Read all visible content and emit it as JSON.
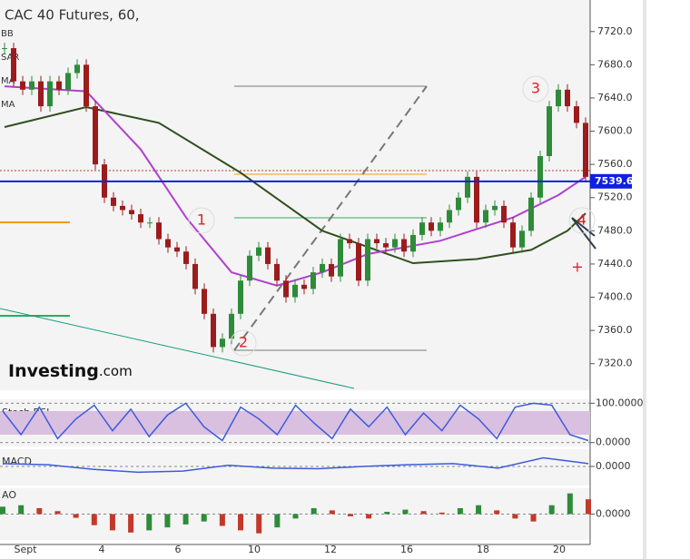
{
  "chart_data": {
    "type": "candlestick",
    "title": "CAC 40 Futures, 60,",
    "up_color": "#2e8b3a",
    "down_color": "#9b1c1c",
    "close": [
      7700,
      7660,
      7650,
      7660,
      7630,
      7660,
      7650,
      7670,
      7680,
      7630,
      7560,
      7520,
      7510,
      7505,
      7500,
      7490,
      7490,
      7470,
      7460,
      7455,
      7440,
      7410,
      7380,
      7340,
      7350,
      7380,
      7420,
      7450,
      7460,
      7440,
      7420,
      7400,
      7415,
      7410,
      7430,
      7440,
      7425,
      7470,
      7465,
      7420,
      7470,
      7465,
      7460,
      7470,
      7455,
      7475,
      7490,
      7480,
      7490,
      7505,
      7520,
      7545,
      7490,
      7505,
      7510,
      7490,
      7460,
      7480,
      7520,
      7570,
      7630,
      7650,
      7630,
      7610,
      7545
    ],
    "ylim": [
      7288,
      7758
    ],
    "yticks": [
      {
        "value": 7720,
        "label": "7720.0"
      },
      {
        "value": 7680,
        "label": "7680.0"
      },
      {
        "value": 7640,
        "label": "7640.0"
      },
      {
        "value": 7600,
        "label": "7600.0"
      },
      {
        "value": 7560,
        "label": "7560.0"
      },
      {
        "value": 7520,
        "label": "7520.0"
      },
      {
        "value": 7480,
        "label": "7480.0"
      },
      {
        "value": 7440,
        "label": "7440.0"
      },
      {
        "value": 7400,
        "label": "7400.0"
      },
      {
        "value": 7360,
        "label": "7360.0"
      },
      {
        "value": 7320,
        "label": "7320.0"
      }
    ],
    "last_price": 7539.6,
    "x_labels": [
      "Sept",
      "4",
      "6",
      "10",
      "12",
      "16",
      "18",
      "20"
    ],
    "legend": [
      "BB",
      "SAR",
      "MA",
      "MA"
    ],
    "overlays": [
      {
        "name": "MA",
        "color": "#2f4f1f",
        "x": [
          0,
          9,
          17,
          26,
          35,
          45,
          52,
          58,
          62,
          64
        ],
        "values": [
          7605,
          7629,
          7610,
          7550,
          7480,
          7441,
          7446,
          7457,
          7480,
          7501
        ]
      },
      {
        "name": "MA",
        "color": "#b040d0",
        "x": [
          0,
          9,
          15,
          20,
          25,
          30,
          35,
          40,
          48,
          56,
          61,
          64
        ],
        "values": [
          7654,
          7648,
          7578,
          7496,
          7430,
          7414,
          7430,
          7452,
          7468,
          7496,
          7523,
          7545
        ]
      }
    ],
    "annotations": [
      "1",
      "2",
      "3",
      "4"
    ],
    "logo": "Investing",
    "logo_suffix": ".com",
    "stoch": {
      "name": "Stoch RSI",
      "ylim": [
        -10,
        110
      ],
      "yticks": [
        {
          "value": 100,
          "label": "100.0000"
        },
        {
          "value": 0,
          "label": "0.0000"
        }
      ],
      "values": [
        80,
        20,
        90,
        10,
        60,
        95,
        30,
        85,
        15,
        70,
        100,
        40,
        5,
        90,
        60,
        20,
        95,
        50,
        10,
        85,
        40,
        90,
        20,
        75,
        30,
        95,
        60,
        10,
        90,
        100,
        95,
        20,
        5
      ]
    },
    "macd": {
      "name": "MACD",
      "ylim": [
        -30,
        30
      ],
      "yticks": [
        {
          "value": 0,
          "label": "0.0000"
        }
      ],
      "values": [
        5,
        3,
        -5,
        -10,
        -8,
        2,
        -3,
        -4,
        0,
        3,
        5,
        -3,
        15,
        5
      ]
    },
    "ao": {
      "name": "AO",
      "ylim": [
        -35,
        35
      ],
      "yticks": [
        {
          "value": 0,
          "label": "0.0000"
        }
      ],
      "values": [
        10,
        12,
        8,
        4,
        -5,
        -15,
        -22,
        -25,
        -22,
        -18,
        -14,
        -10,
        -16,
        -22,
        -26,
        -18,
        -6,
        8,
        5,
        -3,
        -6,
        3,
        6,
        4,
        2,
        8,
        12,
        5,
        -6,
        -10,
        12,
        28,
        20
      ]
    }
  }
}
